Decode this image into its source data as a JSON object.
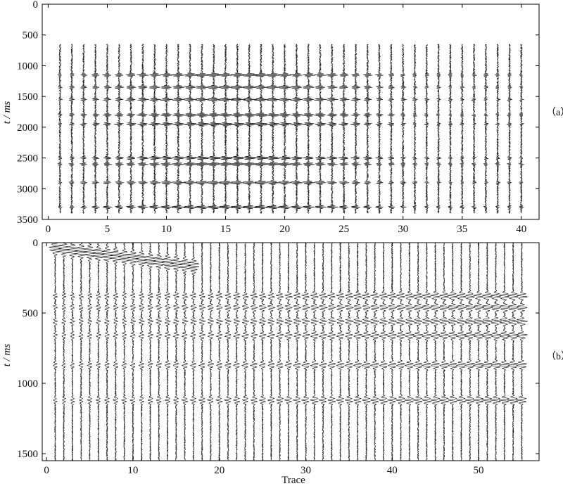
{
  "chart_data": [
    {
      "type": "wiggle",
      "panel_label": "（a）",
      "ylabel": "t / ms",
      "xlabel": "",
      "xlim": [
        -0.5,
        41.5
      ],
      "ylim": [
        0,
        3500
      ],
      "y_inverted": true,
      "x_ticks": [
        0,
        5,
        10,
        15,
        20,
        25,
        30,
        35,
        40
      ],
      "y_ticks": [
        0,
        500,
        1000,
        1500,
        2000,
        2500,
        3000,
        3500
      ],
      "trace_count": 40,
      "trace_start": 1,
      "trace_step": 1,
      "record_time_ms": [
        650,
        3400
      ],
      "events_ms": [
        1150,
        1350,
        1550,
        1800,
        1950,
        2500,
        2600,
        2900,
        3300
      ]
    },
    {
      "type": "wiggle",
      "panel_label": "（b）",
      "ylabel": "t / ms",
      "xlabel": "Trace",
      "xlim": [
        -0.5,
        57
      ],
      "ylim": [
        0,
        1550
      ],
      "y_inverted": true,
      "x_ticks": [
        0,
        10,
        20,
        30,
        40,
        50
      ],
      "y_ticks": [
        0,
        500,
        1000,
        1500
      ],
      "trace_count": 55,
      "trace_start": 1,
      "trace_step": 1,
      "record_time_ms": [
        0,
        1550
      ],
      "events_ms": [
        380,
        460,
        560,
        660,
        870,
        1120
      ]
    }
  ]
}
